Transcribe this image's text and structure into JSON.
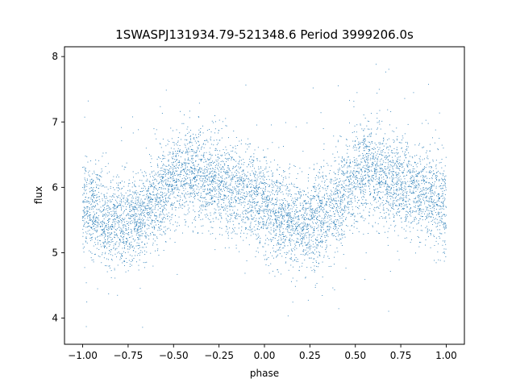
{
  "chart_data": {
    "type": "scatter",
    "title": "1SWASPJ131934.79-521348.6 Period 3999206.0s",
    "xlabel": "phase",
    "ylabel": "flux",
    "xlim": [
      -1.1,
      1.1
    ],
    "ylim": [
      3.6,
      8.15
    ],
    "xticks": [
      -1.0,
      -0.75,
      -0.5,
      -0.25,
      0.0,
      0.25,
      0.5,
      0.75,
      1.0
    ],
    "xtick_labels": [
      "−1.00",
      "−0.75",
      "−0.50",
      "−0.25",
      "0.00",
      "0.25",
      "0.50",
      "0.75",
      "1.00"
    ],
    "yticks": [
      4,
      5,
      6,
      7,
      8
    ],
    "ytick_labels": [
      "4",
      "5",
      "6",
      "7",
      "8"
    ],
    "grid": false,
    "marker_color": "#1f77b4",
    "trend_knots": {
      "phase": [
        0.0,
        0.1,
        0.2,
        0.25,
        0.35,
        0.45,
        0.5,
        0.55,
        0.6,
        0.7,
        0.8,
        0.9,
        1.0
      ],
      "flux": [
        5.75,
        5.55,
        5.45,
        5.45,
        5.65,
        5.95,
        6.15,
        6.3,
        6.25,
        6.1,
        6.0,
        5.9,
        5.75
      ]
    },
    "scatter_sigma": 0.35,
    "point_count": 7000
  }
}
